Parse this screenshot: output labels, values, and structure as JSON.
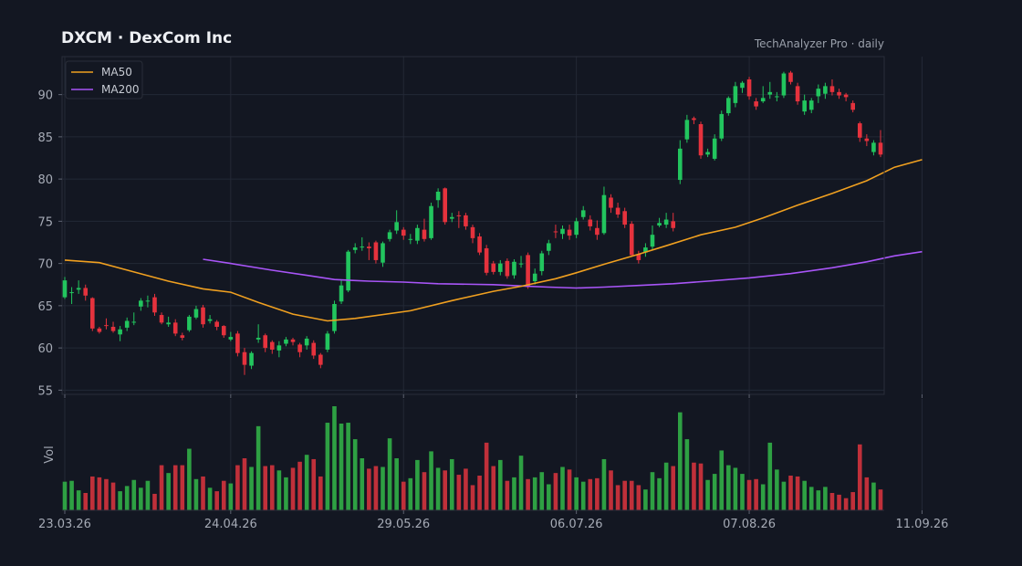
{
  "header": {
    "title": "DXCM · DexCom Inc",
    "source": "TechAnalyzer Pro · daily"
  },
  "colors": {
    "background": "#131722",
    "up": "#22c55e",
    "down": "#e5323d",
    "volume_up": "#2ea043",
    "volume_down": "#c0303a",
    "ma50": "#f0a020",
    "ma200": "#a855f7",
    "grid": "#232836"
  },
  "chart_data": {
    "type": "candlestick",
    "ticker": "DXCM",
    "name": "DexCom Inc",
    "interval": "daily",
    "ylim": [
      54.5,
      94.5
    ],
    "yticks": [
      55,
      60,
      65,
      70,
      75,
      80,
      85,
      90
    ],
    "ylabel_volume": "Vol",
    "legend": {
      "position": "top-left",
      "items": [
        "MA50",
        "MA200"
      ]
    },
    "grid": true,
    "x_tick_labels": [
      {
        "index": 0,
        "label": "23.03.26"
      },
      {
        "index": 24,
        "label": "24.04.26"
      },
      {
        "index": 49,
        "label": "29.05.26"
      },
      {
        "index": 74,
        "label": "06.07.26"
      },
      {
        "index": 99,
        "label": "07.08.26"
      },
      {
        "index": 124,
        "label": "11.09.26"
      }
    ],
    "candles": [
      [
        66.0,
        68.0,
        68.4,
        65.8,
        0.33
      ],
      [
        66.5,
        66.6,
        67.2,
        65.2,
        0.34
      ],
      [
        66.9,
        67.1,
        68.0,
        66.4,
        0.23
      ],
      [
        67.1,
        66.2,
        67.5,
        65.6,
        0.2
      ],
      [
        65.9,
        62.3,
        66.0,
        62.0,
        0.39
      ],
      [
        62.3,
        61.9,
        62.5,
        61.7,
        0.38
      ],
      [
        62.7,
        62.6,
        63.5,
        62.2,
        0.36
      ],
      [
        62.5,
        62.0,
        63.1,
        61.8,
        0.32
      ],
      [
        61.6,
        62.2,
        62.6,
        60.8,
        0.22
      ],
      [
        62.4,
        63.2,
        63.6,
        62.0,
        0.28
      ],
      [
        63.0,
        63.1,
        64.2,
        62.7,
        0.35
      ],
      [
        64.9,
        65.6,
        65.9,
        64.4,
        0.26
      ],
      [
        65.5,
        65.6,
        66.2,
        64.8,
        0.34
      ],
      [
        66.0,
        64.2,
        66.4,
        63.8,
        0.19
      ],
      [
        63.9,
        63.0,
        64.2,
        62.8,
        0.52
      ],
      [
        62.8,
        63.0,
        63.7,
        62.5,
        0.43
      ],
      [
        63.0,
        61.7,
        63.4,
        61.4,
        0.52
      ],
      [
        61.5,
        61.2,
        61.8,
        60.9,
        0.52
      ],
      [
        62.1,
        63.7,
        63.9,
        61.9,
        0.71
      ],
      [
        63.6,
        64.6,
        65.0,
        63.4,
        0.36
      ],
      [
        64.8,
        62.8,
        65.1,
        62.4,
        0.39
      ],
      [
        63.2,
        63.4,
        63.9,
        62.9,
        0.26
      ],
      [
        63.1,
        62.5,
        63.3,
        62.1,
        0.22
      ],
      [
        62.6,
        61.5,
        62.7,
        61.2,
        0.34
      ],
      [
        61.0,
        61.3,
        61.9,
        60.8,
        0.31
      ],
      [
        61.7,
        59.4,
        62.0,
        59.0,
        0.52
      ],
      [
        59.5,
        58.0,
        60.0,
        56.8,
        0.6
      ],
      [
        57.9,
        59.4,
        59.6,
        57.5,
        0.5
      ],
      [
        61.0,
        61.2,
        62.8,
        60.6,
        0.97
      ],
      [
        61.5,
        60.0,
        61.7,
        59.5,
        0.51
      ],
      [
        60.7,
        59.8,
        60.9,
        59.3,
        0.52
      ],
      [
        59.7,
        60.3,
        60.8,
        58.9,
        0.46
      ],
      [
        60.5,
        61.0,
        61.3,
        60.2,
        0.38
      ],
      [
        61.0,
        60.7,
        61.2,
        60.3,
        0.49
      ],
      [
        60.4,
        59.5,
        60.6,
        58.9,
        0.56
      ],
      [
        60.3,
        61.1,
        61.4,
        59.8,
        0.64
      ],
      [
        60.6,
        59.1,
        60.9,
        58.7,
        0.59
      ],
      [
        59.2,
        58.0,
        59.4,
        57.6,
        0.39
      ],
      [
        59.8,
        61.7,
        62.0,
        59.5,
        1.01
      ],
      [
        62.0,
        65.2,
        65.6,
        61.7,
        1.2
      ],
      [
        65.5,
        67.4,
        68.0,
        65.2,
        1.0
      ],
      [
        66.8,
        71.4,
        71.6,
        66.6,
        1.01
      ],
      [
        71.6,
        71.9,
        72.4,
        71.2,
        0.82
      ],
      [
        71.9,
        72.0,
        73.1,
        71.5,
        0.6
      ],
      [
        72.0,
        71.8,
        72.5,
        70.4,
        0.48
      ],
      [
        72.5,
        70.4,
        72.7,
        70.0,
        0.51
      ],
      [
        70.1,
        72.4,
        72.6,
        69.6,
        0.5
      ],
      [
        72.9,
        73.7,
        74.0,
        72.6,
        0.83
      ],
      [
        73.9,
        74.9,
        76.3,
        73.5,
        0.6
      ],
      [
        74.0,
        73.3,
        74.3,
        72.8,
        0.33
      ],
      [
        72.8,
        72.9,
        73.5,
        72.3,
        0.37
      ],
      [
        72.7,
        74.2,
        74.6,
        72.3,
        0.58
      ],
      [
        74.0,
        72.9,
        75.3,
        72.6,
        0.44
      ],
      [
        73.0,
        76.8,
        77.2,
        72.8,
        0.68
      ],
      [
        77.5,
        78.5,
        78.9,
        76.6,
        0.49
      ],
      [
        78.9,
        74.9,
        79.0,
        74.6,
        0.46
      ],
      [
        75.3,
        75.5,
        76.0,
        74.9,
        0.59
      ],
      [
        75.7,
        75.6,
        76.2,
        74.2,
        0.41
      ],
      [
        75.7,
        74.4,
        76.0,
        74.0,
        0.48
      ],
      [
        74.3,
        73.0,
        74.6,
        72.4,
        0.29
      ],
      [
        73.2,
        71.3,
        73.6,
        71.0,
        0.4
      ],
      [
        71.8,
        68.9,
        72.2,
        68.6,
        0.78
      ],
      [
        70.0,
        69.0,
        70.3,
        68.7,
        0.51
      ],
      [
        69.0,
        70.0,
        70.4,
        68.6,
        0.58
      ],
      [
        70.3,
        68.5,
        70.6,
        68.2,
        0.34
      ],
      [
        68.6,
        70.2,
        70.5,
        68.2,
        0.38
      ],
      [
        69.9,
        70.0,
        70.9,
        69.5,
        0.63
      ],
      [
        71.0,
        67.2,
        71.3,
        67.0,
        0.36
      ],
      [
        67.9,
        68.8,
        69.4,
        67.5,
        0.38
      ],
      [
        69.1,
        71.2,
        71.5,
        68.6,
        0.44
      ],
      [
        71.5,
        72.4,
        72.8,
        71.0,
        0.3
      ],
      [
        73.8,
        73.7,
        74.6,
        73.0,
        0.43
      ],
      [
        73.5,
        74.1,
        74.5,
        72.9,
        0.5
      ],
      [
        74.0,
        73.3,
        74.6,
        72.8,
        0.47
      ],
      [
        73.4,
        75.0,
        75.4,
        73.0,
        0.38
      ],
      [
        75.5,
        76.3,
        76.8,
        75.2,
        0.33
      ],
      [
        75.2,
        74.4,
        75.7,
        73.9,
        0.36
      ],
      [
        74.2,
        73.4,
        75.1,
        72.8,
        0.37
      ],
      [
        73.6,
        78.1,
        79.1,
        73.4,
        0.59
      ],
      [
        77.8,
        76.6,
        78.2,
        76.0,
        0.46
      ],
      [
        76.6,
        75.8,
        77.2,
        75.4,
        0.29
      ],
      [
        76.2,
        74.6,
        76.6,
        74.2,
        0.34
      ],
      [
        74.7,
        71.0,
        75.0,
        70.8,
        0.34
      ],
      [
        71.1,
        70.4,
        71.5,
        70.0,
        0.29
      ],
      [
        71.3,
        71.9,
        72.4,
        70.8,
        0.24
      ],
      [
        72.0,
        73.4,
        74.5,
        71.6,
        0.44
      ],
      [
        74.5,
        74.8,
        75.4,
        74.3,
        0.37
      ],
      [
        74.6,
        75.2,
        76.0,
        74.2,
        0.55
      ],
      [
        75.0,
        74.2,
        76.0,
        73.8,
        0.51
      ],
      [
        79.9,
        83.6,
        84.6,
        79.4,
        1.13
      ],
      [
        84.7,
        87.0,
        87.6,
        84.3,
        0.82
      ],
      [
        87.2,
        87.0,
        87.4,
        86.5,
        0.55
      ],
      [
        86.5,
        82.8,
        86.8,
        82.4,
        0.54
      ],
      [
        82.9,
        83.2,
        83.6,
        82.6,
        0.35
      ],
      [
        82.4,
        84.8,
        85.3,
        82.2,
        0.42
      ],
      [
        84.8,
        87.7,
        88.1,
        84.5,
        0.69
      ],
      [
        87.8,
        89.6,
        89.8,
        87.5,
        0.52
      ],
      [
        89.0,
        91.0,
        91.5,
        88.5,
        0.49
      ],
      [
        90.8,
        91.4,
        91.6,
        90.2,
        0.42
      ],
      [
        91.8,
        89.8,
        92.1,
        89.4,
        0.35
      ],
      [
        89.2,
        88.6,
        89.6,
        88.2,
        0.36
      ],
      [
        89.2,
        89.6,
        91.0,
        89.0,
        0.3
      ],
      [
        90.0,
        90.3,
        91.5,
        89.5,
        0.78
      ],
      [
        89.8,
        89.8,
        90.3,
        89.2,
        0.47
      ],
      [
        89.9,
        92.5,
        92.7,
        89.6,
        0.33
      ],
      [
        92.6,
        91.5,
        92.8,
        91.2,
        0.4
      ],
      [
        91.0,
        89.2,
        91.4,
        88.8,
        0.39
      ],
      [
        88.0,
        89.3,
        90.0,
        87.6,
        0.34
      ],
      [
        88.2,
        89.3,
        89.6,
        87.8,
        0.27
      ],
      [
        89.8,
        90.7,
        91.2,
        89.0,
        0.23
      ],
      [
        90.1,
        91.0,
        91.4,
        89.5,
        0.27
      ],
      [
        91.0,
        90.3,
        91.8,
        89.9,
        0.2
      ],
      [
        90.3,
        89.9,
        90.7,
        89.5,
        0.18
      ],
      [
        90.0,
        89.7,
        90.2,
        89.2,
        0.14
      ],
      [
        89.0,
        88.2,
        89.3,
        87.9,
        0.21
      ],
      [
        86.6,
        84.9,
        86.8,
        84.4,
        0.76
      ],
      [
        84.8,
        84.5,
        85.3,
        83.9,
        0.38
      ],
      [
        83.2,
        84.3,
        84.6,
        82.8,
        0.32
      ],
      [
        84.3,
        82.9,
        85.8,
        82.6,
        0.24
      ]
    ],
    "ma50": [
      [
        0,
        70.4
      ],
      [
        5,
        70.1
      ],
      [
        10,
        69.0
      ],
      [
        15,
        67.9
      ],
      [
        20,
        67.0
      ],
      [
        24,
        66.6
      ],
      [
        28,
        65.4
      ],
      [
        33,
        64.0
      ],
      [
        38,
        63.2
      ],
      [
        42,
        63.5
      ],
      [
        50,
        64.4
      ],
      [
        56,
        65.6
      ],
      [
        62,
        66.7
      ],
      [
        66,
        67.3
      ],
      [
        71,
        68.2
      ],
      [
        74,
        68.9
      ],
      [
        78,
        69.9
      ],
      [
        83,
        71.1
      ],
      [
        87,
        72.1
      ],
      [
        92,
        73.4
      ],
      [
        97,
        74.3
      ],
      [
        101,
        75.4
      ],
      [
        106,
        76.9
      ],
      [
        111,
        78.3
      ],
      [
        116,
        79.8
      ],
      [
        120,
        81.4
      ],
      [
        124,
        82.3
      ]
    ],
    "ma200": [
      [
        20,
        70.5
      ],
      [
        24,
        70.0
      ],
      [
        30,
        69.2
      ],
      [
        35,
        68.6
      ],
      [
        39,
        68.1
      ],
      [
        44,
        67.9
      ],
      [
        49,
        67.8
      ],
      [
        54,
        67.6
      ],
      [
        62,
        67.5
      ],
      [
        67,
        67.3
      ],
      [
        70,
        67.2
      ],
      [
        74,
        67.1
      ],
      [
        78,
        67.2
      ],
      [
        83,
        67.4
      ],
      [
        88,
        67.6
      ],
      [
        93,
        67.9
      ],
      [
        99,
        68.3
      ],
      [
        105,
        68.8
      ],
      [
        111,
        69.5
      ],
      [
        116,
        70.2
      ],
      [
        120,
        70.9
      ],
      [
        124,
        71.4
      ]
    ]
  }
}
